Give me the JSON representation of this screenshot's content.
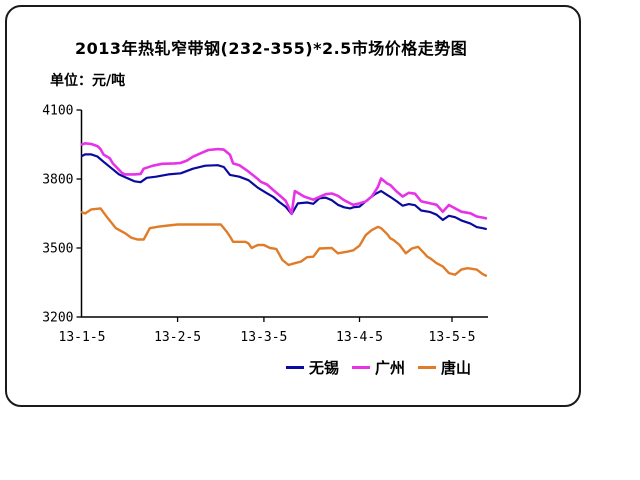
{
  "chart": {
    "title": "2013年热轧窄带钢(232-355)*2.5市场价格走势图",
    "unit_label": "单位：元/吨"
  },
  "colors": {
    "axis": "#000000",
    "wuxi": "#0a0aa0",
    "guangzhou": "#e832e8",
    "tangshan": "#e07c28"
  },
  "chart_data": {
    "type": "line",
    "title": "2013年热轧窄带钢(232-355)*2.5市场价格走势图",
    "ylabel": "元/吨",
    "grid": false,
    "legend_position": "bottom",
    "y_axis": {
      "min": 3200,
      "max": 4100,
      "ticks": [
        3200,
        3500,
        3800,
        4100
      ]
    },
    "x_axis": {
      "tick_labels": [
        "13-1-5",
        "13-2-5",
        "13-3-5",
        "13-4-5",
        "13-5-5"
      ],
      "tick_days": [
        0,
        31,
        59,
        90,
        120
      ],
      "day_range": [
        0,
        131
      ]
    },
    "series": [
      {
        "id": "wuxi",
        "name": "无锡",
        "color": "#0a0aa0",
        "points": [
          [
            0,
            3900
          ],
          [
            1,
            3907
          ],
          [
            3,
            3907
          ],
          [
            5,
            3898
          ],
          [
            7,
            3875
          ],
          [
            10,
            3842
          ],
          [
            12,
            3820
          ],
          [
            14,
            3808
          ],
          [
            17,
            3790
          ],
          [
            19,
            3786
          ],
          [
            21,
            3805
          ],
          [
            24,
            3810
          ],
          [
            28,
            3820
          ],
          [
            32,
            3825
          ],
          [
            36,
            3845
          ],
          [
            40,
            3858
          ],
          [
            44,
            3860
          ],
          [
            46,
            3852
          ],
          [
            48,
            3818
          ],
          [
            51,
            3810
          ],
          [
            54,
            3795
          ],
          [
            57,
            3762
          ],
          [
            60,
            3738
          ],
          [
            62,
            3722
          ],
          [
            64,
            3700
          ],
          [
            66,
            3680
          ],
          [
            68,
            3648
          ],
          [
            70,
            3694
          ],
          [
            73,
            3698
          ],
          [
            75,
            3692
          ],
          [
            77,
            3716
          ],
          [
            79,
            3719
          ],
          [
            81,
            3708
          ],
          [
            83,
            3688
          ],
          [
            85,
            3677
          ],
          [
            87,
            3672
          ],
          [
            88,
            3677
          ],
          [
            90,
            3680
          ],
          [
            93,
            3714
          ],
          [
            95,
            3734
          ],
          [
            97,
            3748
          ],
          [
            99,
            3730
          ],
          [
            100,
            3722
          ],
          [
            102,
            3704
          ],
          [
            104,
            3684
          ],
          [
            106,
            3691
          ],
          [
            108,
            3686
          ],
          [
            110,
            3663
          ],
          [
            113,
            3656
          ],
          [
            115,
            3645
          ],
          [
            117,
            3622
          ],
          [
            119,
            3640
          ],
          [
            121,
            3634
          ],
          [
            123,
            3620
          ],
          [
            126,
            3606
          ],
          [
            128,
            3591
          ],
          [
            130,
            3586
          ],
          [
            131,
            3583
          ]
        ]
      },
      {
        "id": "guangzhou",
        "name": "广州",
        "color": "#e832e8",
        "points": [
          [
            0,
            3950
          ],
          [
            1,
            3955
          ],
          [
            3,
            3952
          ],
          [
            5,
            3943
          ],
          [
            6,
            3930
          ],
          [
            7,
            3906
          ],
          [
            9,
            3890
          ],
          [
            10,
            3868
          ],
          [
            12,
            3840
          ],
          [
            13,
            3826
          ],
          [
            14,
            3820
          ],
          [
            17,
            3820
          ],
          [
            19,
            3822
          ],
          [
            20,
            3845
          ],
          [
            23,
            3858
          ],
          [
            26,
            3866
          ],
          [
            30,
            3868
          ],
          [
            32,
            3870
          ],
          [
            34,
            3880
          ],
          [
            36,
            3897
          ],
          [
            39,
            3915
          ],
          [
            41,
            3926
          ],
          [
            44,
            3930
          ],
          [
            46,
            3928
          ],
          [
            48,
            3905
          ],
          [
            49,
            3868
          ],
          [
            51,
            3860
          ],
          [
            54,
            3832
          ],
          [
            57,
            3800
          ],
          [
            58,
            3788
          ],
          [
            60,
            3776
          ],
          [
            62,
            3752
          ],
          [
            64,
            3730
          ],
          [
            66,
            3706
          ],
          [
            68,
            3650
          ],
          [
            69,
            3748
          ],
          [
            70,
            3740
          ],
          [
            72,
            3724
          ],
          [
            75,
            3710
          ],
          [
            77,
            3722
          ],
          [
            79,
            3734
          ],
          [
            81,
            3737
          ],
          [
            83,
            3727
          ],
          [
            85,
            3708
          ],
          [
            87,
            3694
          ],
          [
            88,
            3688
          ],
          [
            90,
            3694
          ],
          [
            92,
            3702
          ],
          [
            94,
            3724
          ],
          [
            96,
            3766
          ],
          [
            97,
            3802
          ],
          [
            99,
            3780
          ],
          [
            100,
            3774
          ],
          [
            102,
            3746
          ],
          [
            104,
            3724
          ],
          [
            106,
            3740
          ],
          [
            108,
            3736
          ],
          [
            110,
            3703
          ],
          [
            113,
            3694
          ],
          [
            115,
            3688
          ],
          [
            117,
            3658
          ],
          [
            119,
            3687
          ],
          [
            121,
            3672
          ],
          [
            123,
            3658
          ],
          [
            126,
            3651
          ],
          [
            128,
            3637
          ],
          [
            130,
            3632
          ],
          [
            131,
            3629
          ]
        ]
      },
      {
        "id": "tangshan",
        "name": "唐山",
        "color": "#e07c28",
        "points": [
          [
            0,
            3655
          ],
          [
            1,
            3650
          ],
          [
            3,
            3668
          ],
          [
            6,
            3672
          ],
          [
            8,
            3636
          ],
          [
            11,
            3586
          ],
          [
            14,
            3564
          ],
          [
            16,
            3545
          ],
          [
            18,
            3537
          ],
          [
            20,
            3537
          ],
          [
            22,
            3586
          ],
          [
            25,
            3593
          ],
          [
            28,
            3598
          ],
          [
            31,
            3602
          ],
          [
            45,
            3602
          ],
          [
            47,
            3570
          ],
          [
            48,
            3550
          ],
          [
            49,
            3527
          ],
          [
            53,
            3527
          ],
          [
            54,
            3520
          ],
          [
            55,
            3500
          ],
          [
            57,
            3513
          ],
          [
            59,
            3513
          ],
          [
            61,
            3500
          ],
          [
            63,
            3496
          ],
          [
            65,
            3448
          ],
          [
            67,
            3426
          ],
          [
            69,
            3434
          ],
          [
            71,
            3441
          ],
          [
            73,
            3460
          ],
          [
            75,
            3462
          ],
          [
            77,
            3498
          ],
          [
            81,
            3500
          ],
          [
            83,
            3477
          ],
          [
            86,
            3484
          ],
          [
            88,
            3490
          ],
          [
            90,
            3510
          ],
          [
            92,
            3556
          ],
          [
            94,
            3578
          ],
          [
            96,
            3592
          ],
          [
            97,
            3586
          ],
          [
            99,
            3560
          ],
          [
            100,
            3542
          ],
          [
            101,
            3535
          ],
          [
            103,
            3513
          ],
          [
            105,
            3477
          ],
          [
            107,
            3498
          ],
          [
            109,
            3505
          ],
          [
            111,
            3477
          ],
          [
            112,
            3462
          ],
          [
            113,
            3455
          ],
          [
            115,
            3434
          ],
          [
            117,
            3420
          ],
          [
            119,
            3391
          ],
          [
            121,
            3384
          ],
          [
            123,
            3406
          ],
          [
            125,
            3412
          ],
          [
            128,
            3406
          ],
          [
            130,
            3386
          ],
          [
            131,
            3380
          ]
        ]
      }
    ]
  }
}
